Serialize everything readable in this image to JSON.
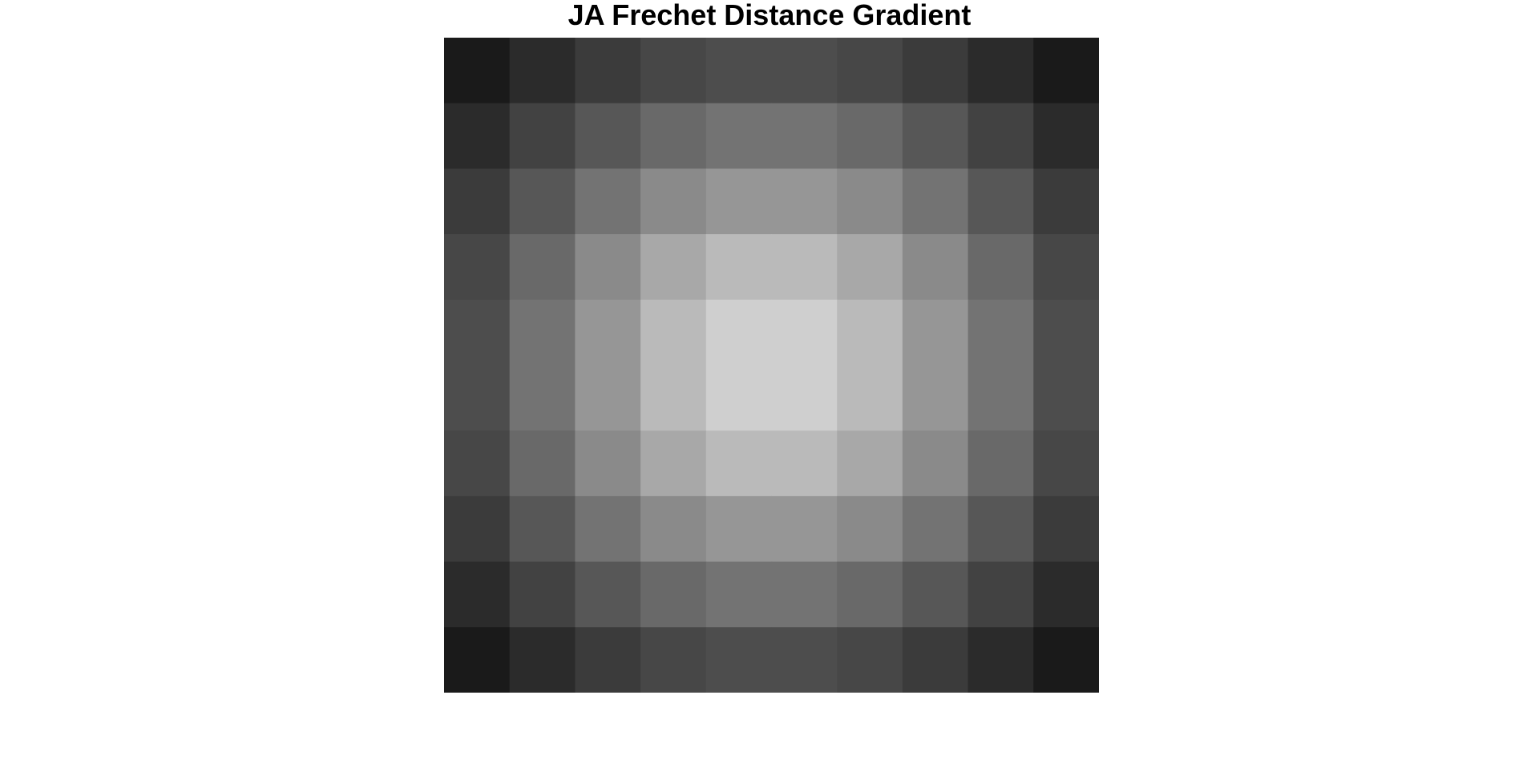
{
  "chart_data": {
    "type": "heatmap",
    "title": "JA Frechet Distance Gradient",
    "xlabel": "",
    "ylabel": "",
    "colormap": "gray",
    "grid": false,
    "legend": "none",
    "rows": 10,
    "cols": 10,
    "values": [
      [
        0.1,
        0.17,
        0.23,
        0.28,
        0.3,
        0.3,
        0.28,
        0.23,
        0.17,
        0.1
      ],
      [
        0.17,
        0.26,
        0.34,
        0.41,
        0.45,
        0.45,
        0.41,
        0.34,
        0.26,
        0.17
      ],
      [
        0.23,
        0.34,
        0.45,
        0.54,
        0.59,
        0.59,
        0.54,
        0.45,
        0.34,
        0.23
      ],
      [
        0.28,
        0.41,
        0.54,
        0.66,
        0.73,
        0.73,
        0.66,
        0.54,
        0.41,
        0.28
      ],
      [
        0.3,
        0.45,
        0.59,
        0.73,
        0.81,
        0.81,
        0.73,
        0.59,
        0.45,
        0.3
      ],
      [
        0.3,
        0.45,
        0.59,
        0.73,
        0.81,
        0.81,
        0.73,
        0.59,
        0.45,
        0.3
      ],
      [
        0.28,
        0.41,
        0.54,
        0.66,
        0.73,
        0.73,
        0.66,
        0.54,
        0.41,
        0.28
      ],
      [
        0.23,
        0.34,
        0.45,
        0.54,
        0.59,
        0.59,
        0.54,
        0.45,
        0.34,
        0.23
      ],
      [
        0.17,
        0.26,
        0.34,
        0.41,
        0.45,
        0.45,
        0.41,
        0.34,
        0.26,
        0.17
      ],
      [
        0.1,
        0.17,
        0.23,
        0.28,
        0.3,
        0.3,
        0.28,
        0.23,
        0.17,
        0.1
      ]
    ]
  }
}
